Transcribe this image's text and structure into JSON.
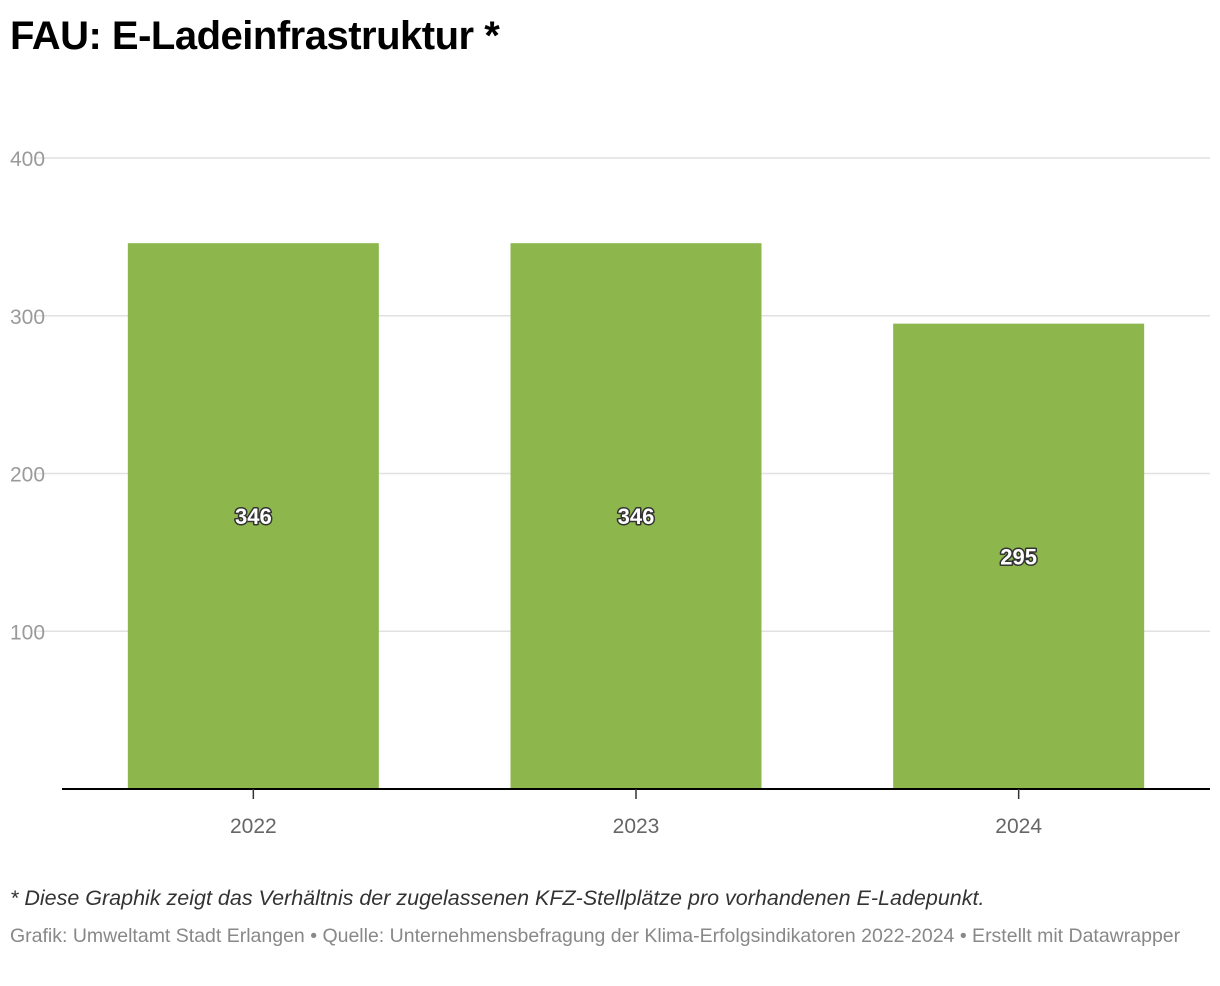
{
  "chart_data": {
    "type": "bar",
    "title": "FAU: E-Ladeinfrastruktur *",
    "categories": [
      "2022",
      "2023",
      "2024"
    ],
    "values": [
      346,
      346,
      295
    ],
    "data_labels": [
      "346",
      "346",
      "295"
    ],
    "ylim": [
      0,
      400
    ],
    "y_ticks": [
      100,
      200,
      300,
      400
    ],
    "y_tick_labels": [
      "100",
      "200",
      "300",
      "400"
    ],
    "grid": true,
    "bar_color": "#8db74c",
    "xlabel": "",
    "ylabel": ""
  },
  "footer": {
    "note": "* Diese Graphik zeigt das Verhältnis der zugelassenen KFZ-Stellplätze pro vorhandenen E-Ladepunkt.",
    "credits": "Grafik: Umweltamt Stadt Erlangen • Quelle: Unternehmensbefragung der Klima-Erfolgsindikatoren 2022-2024 • Erstellt mit Datawrapper"
  }
}
